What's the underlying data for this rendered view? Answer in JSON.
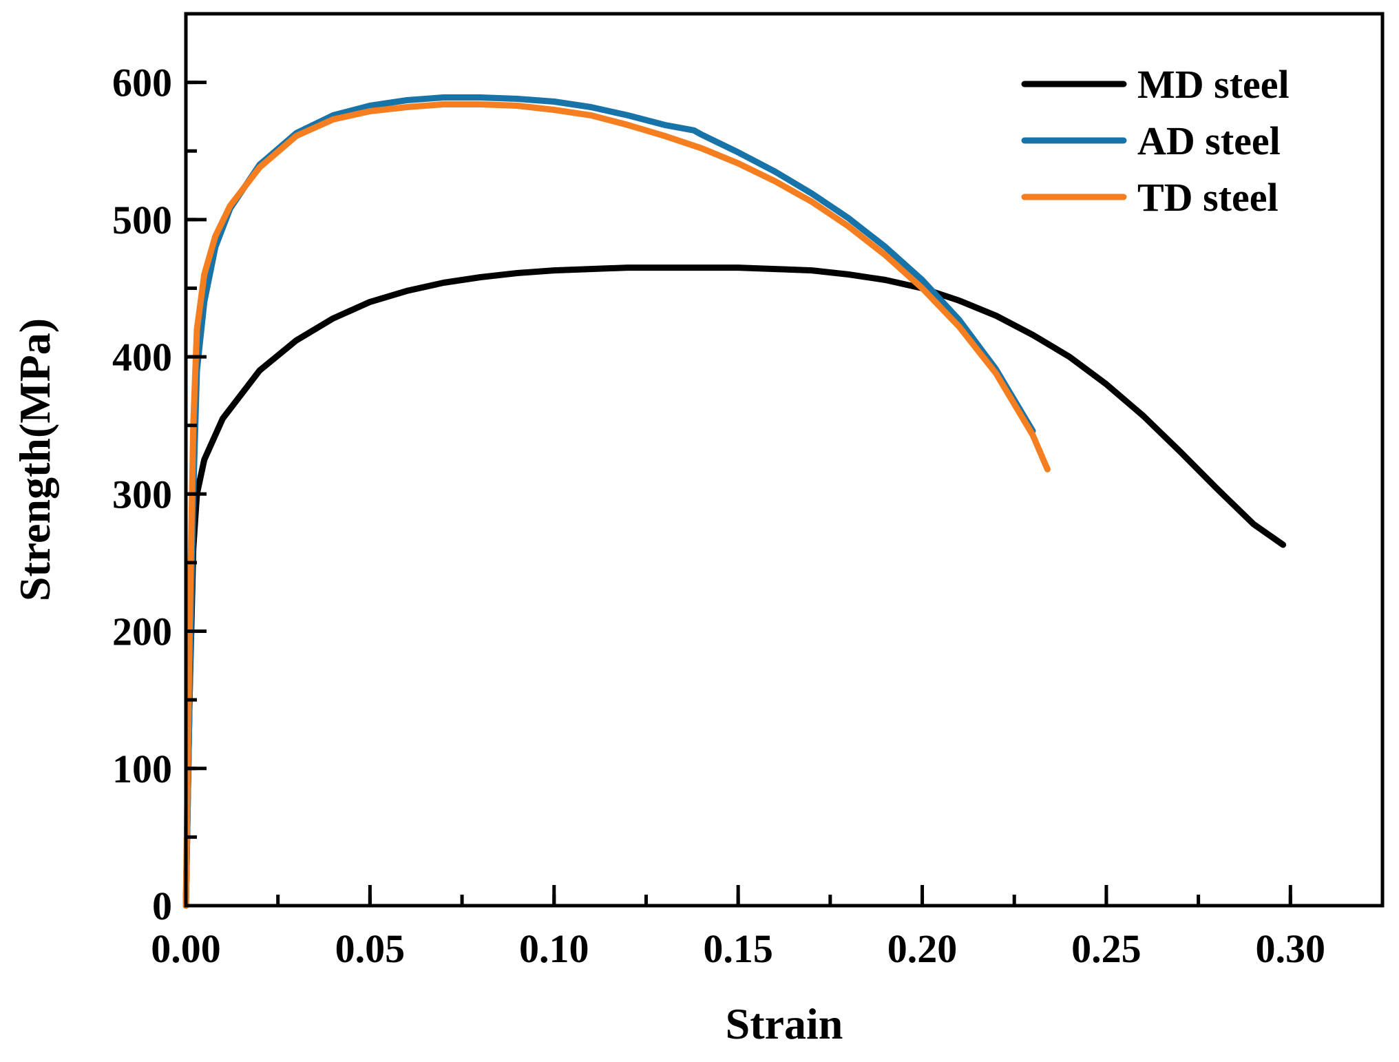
{
  "chart_data": {
    "type": "line",
    "title": "",
    "xlabel": "Strain",
    "ylabel": "Strength(MPa)",
    "xlim": [
      0,
      0.325
    ],
    "ylim": [
      0,
      650
    ],
    "x_ticks": [
      0.0,
      0.05,
      0.1,
      0.15,
      0.2,
      0.25,
      0.3
    ],
    "x_tick_labels": [
      "0.00",
      "0.05",
      "0.10",
      "0.15",
      "0.20",
      "0.25",
      "0.30"
    ],
    "y_ticks": [
      0,
      100,
      200,
      300,
      400,
      500,
      600
    ],
    "y_tick_labels": [
      "0",
      "100",
      "200",
      "300",
      "400",
      "500",
      "600"
    ],
    "legend_position": "top-right",
    "grid": false,
    "series": [
      {
        "name": "MD steel",
        "color": "#000000",
        "x": [
          0.0,
          0.001,
          0.002,
          0.003,
          0.005,
          0.01,
          0.02,
          0.03,
          0.04,
          0.05,
          0.06,
          0.07,
          0.08,
          0.09,
          0.1,
          0.11,
          0.12,
          0.13,
          0.14,
          0.15,
          0.16,
          0.17,
          0.18,
          0.19,
          0.2,
          0.21,
          0.22,
          0.23,
          0.24,
          0.25,
          0.26,
          0.27,
          0.28,
          0.29,
          0.298
        ],
        "y": [
          0,
          150,
          260,
          300,
          325,
          355,
          390,
          412,
          428,
          440,
          448,
          454,
          458,
          461,
          463,
          464,
          465,
          465,
          465,
          465,
          464,
          463,
          460,
          456,
          450,
          441,
          430,
          416,
          400,
          380,
          357,
          331,
          304,
          278,
          263
        ]
      },
      {
        "name": "AD steel",
        "color": "#1874a8",
        "x": [
          0.0,
          0.001,
          0.002,
          0.003,
          0.005,
          0.008,
          0.012,
          0.02,
          0.03,
          0.04,
          0.05,
          0.06,
          0.07,
          0.08,
          0.09,
          0.1,
          0.11,
          0.12,
          0.13,
          0.138,
          0.14,
          0.15,
          0.16,
          0.17,
          0.18,
          0.19,
          0.2,
          0.21,
          0.22,
          0.23
        ],
        "y": [
          0,
          150,
          300,
          390,
          440,
          480,
          508,
          540,
          563,
          576,
          583,
          587,
          589,
          589,
          588,
          586,
          582,
          576,
          569,
          565,
          562,
          549,
          535,
          519,
          501,
          480,
          456,
          427,
          391,
          346
        ]
      },
      {
        "name": "TD steel",
        "color": "#f57f20",
        "x": [
          0.0,
          0.001,
          0.002,
          0.003,
          0.005,
          0.008,
          0.012,
          0.02,
          0.03,
          0.04,
          0.05,
          0.06,
          0.07,
          0.08,
          0.09,
          0.1,
          0.11,
          0.12,
          0.13,
          0.14,
          0.15,
          0.16,
          0.17,
          0.18,
          0.19,
          0.2,
          0.21,
          0.22,
          0.23,
          0.234
        ],
        "y": [
          0,
          200,
          350,
          420,
          460,
          488,
          510,
          538,
          561,
          573,
          579,
          582,
          584,
          584,
          583,
          580,
          576,
          569,
          561,
          552,
          541,
          528,
          513,
          495,
          474,
          450,
          422,
          388,
          343,
          318
        ]
      }
    ]
  }
}
